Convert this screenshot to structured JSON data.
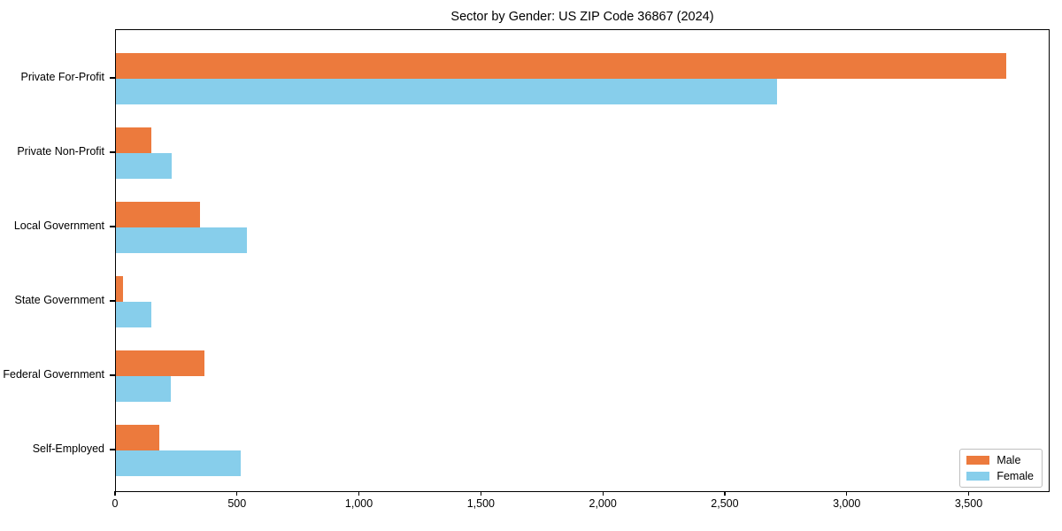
{
  "title": "Sector by Gender: US ZIP Code 36867 (2024)",
  "colors": {
    "male": "#ec7a3d",
    "female": "#87ceeb",
    "axis": "#000000",
    "background": "#ffffff",
    "legend_border": "#bfbfbf"
  },
  "chart_data": {
    "type": "bar",
    "orientation": "horizontal",
    "title": "Sector by Gender: US ZIP Code 36867 (2024)",
    "categories": [
      "Private For-Profit",
      "Private Non-Profit",
      "Local Government",
      "State Government",
      "Federal Government",
      "Self-Employed"
    ],
    "series": [
      {
        "name": "Male",
        "color": "#ec7a3d",
        "values": [
          3650,
          146,
          345,
          28,
          362,
          178
        ]
      },
      {
        "name": "Female",
        "color": "#87ceeb",
        "values": [
          2712,
          228,
          538,
          145,
          224,
          512
        ]
      }
    ],
    "xlabel": "",
    "ylabel": "",
    "xlim": [
      0,
      3832
    ],
    "xticks": [
      0,
      500,
      1000,
      1500,
      2000,
      2500,
      3000,
      3500
    ],
    "xtick_labels": [
      "0",
      "500",
      "1,000",
      "1,500",
      "2,000",
      "2,500",
      "3,000",
      "3,500"
    ],
    "grid": false,
    "legend": {
      "position": "lower right",
      "entries": [
        "Male",
        "Female"
      ]
    }
  }
}
